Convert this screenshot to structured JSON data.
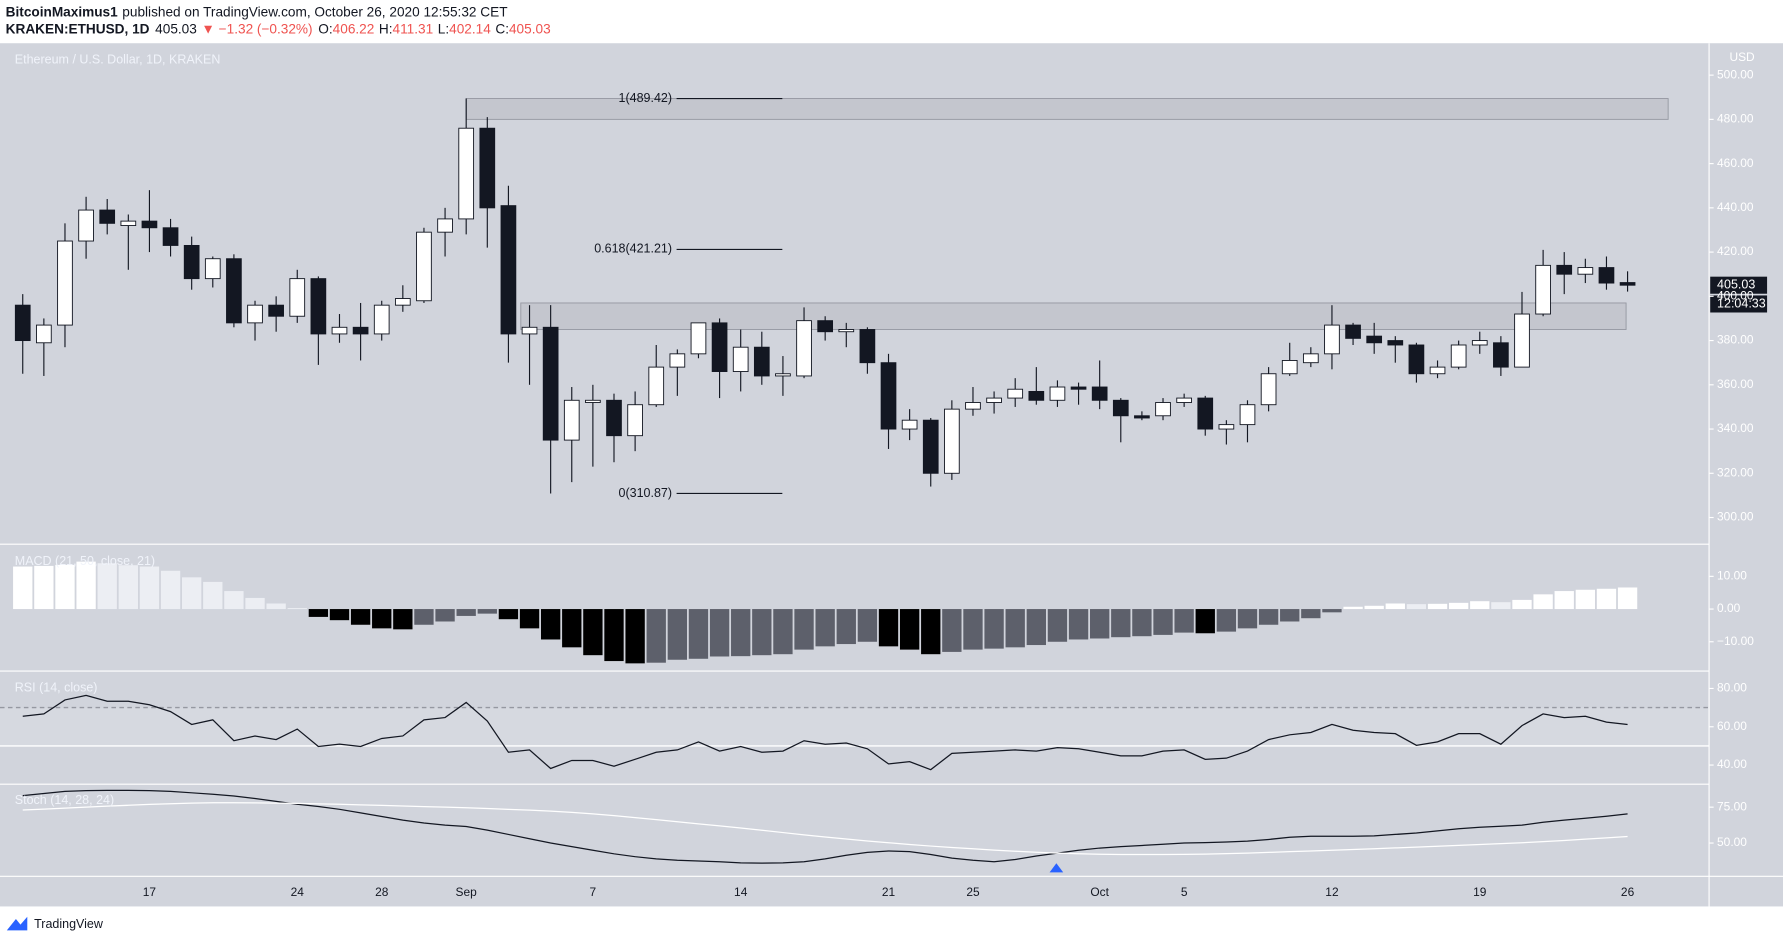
{
  "header": {
    "author": "BitcoinMaximus1",
    "published": "published on TradingView.com, October 26, 2020 12:55:32 CET",
    "symbol": "KRAKEN:ETHUSD, 1D",
    "change": "▼ −1.32 (−0.32%)",
    "ohlc_labels": [
      "O:",
      "H:",
      "L:",
      "C:"
    ]
  },
  "footer": {
    "brand": "TradingView"
  },
  "chart_data": [
    {
      "type": "candlestick",
      "title": "Ethereum / U.S. Dollar, 1D, KRAKEN",
      "y_axis_label": "USD",
      "countdown": "12:04:33",
      "up_color": "#ffffff",
      "down_color": "#131722",
      "outline_color": "#131722",
      "categories": [
        null,
        null,
        null,
        null,
        null,
        null,
        "17",
        null,
        null,
        null,
        null,
        null,
        null,
        "24",
        null,
        null,
        null,
        "28",
        null,
        null,
        null,
        "Sep",
        null,
        null,
        null,
        null,
        null,
        "7",
        null,
        null,
        null,
        null,
        null,
        null,
        "14",
        null,
        null,
        null,
        null,
        null,
        null,
        "21",
        null,
        null,
        null,
        "25",
        null,
        null,
        null,
        null,
        null,
        "Oct",
        null,
        null,
        null,
        "5",
        null,
        null,
        null,
        null,
        null,
        null,
        "12",
        null,
        null,
        null,
        null,
        null,
        null,
        "19",
        null,
        null,
        null,
        null,
        null,
        null,
        "26"
      ],
      "open": [
        396,
        379,
        387,
        425,
        439,
        432,
        434,
        431,
        423,
        408,
        417,
        388,
        396,
        391,
        408,
        383,
        386,
        383,
        396,
        398,
        429,
        435,
        476,
        441,
        383,
        386,
        335,
        352,
        353,
        337,
        351,
        368,
        374,
        388,
        366,
        377,
        364,
        364,
        389,
        384,
        385,
        370,
        340,
        344,
        320,
        349,
        352,
        354,
        357,
        353,
        359,
        359,
        353,
        346,
        346,
        352,
        354,
        340,
        342,
        351,
        365,
        370,
        374,
        387,
        382,
        380,
        378,
        365,
        368,
        378,
        379,
        368,
        392,
        414,
        410,
        413,
        406.22
      ],
      "high": [
        401,
        390,
        433,
        445,
        444,
        437,
        448,
        435,
        427,
        418,
        419,
        398,
        400,
        412,
        409,
        392,
        397,
        398,
        405,
        431,
        440,
        489.42,
        481,
        450,
        396,
        396,
        359,
        360,
        356,
        357,
        378,
        376,
        388,
        390,
        385,
        384,
        373,
        395,
        391,
        388,
        386,
        374,
        349,
        345,
        353,
        359,
        357,
        363,
        368,
        362,
        361,
        371,
        354,
        348,
        354,
        356,
        355,
        344,
        353,
        368,
        379,
        377,
        396,
        388,
        388,
        382,
        379,
        371,
        380,
        384,
        382,
        402,
        421,
        420,
        417,
        418,
        411.31
      ],
      "low": [
        365,
        364,
        377,
        417,
        428,
        412,
        420,
        418,
        403,
        404,
        386,
        380,
        384,
        388,
        369,
        379,
        371,
        380,
        393,
        397,
        418,
        428,
        422,
        370,
        360,
        310.87,
        316,
        323,
        325,
        330,
        350,
        355,
        372,
        354,
        357,
        360,
        355,
        363,
        380,
        377,
        365,
        331,
        335,
        314,
        317,
        346,
        347,
        350,
        351,
        350,
        351,
        349,
        334,
        344,
        344,
        350,
        337,
        333,
        334,
        348,
        364,
        368,
        367,
        378,
        374,
        370,
        361,
        363,
        367,
        374,
        364,
        368,
        391,
        401,
        406,
        403,
        402.14
      ],
      "close": [
        380,
        387,
        425,
        439,
        433,
        434,
        431,
        423,
        408,
        417,
        388,
        396,
        391,
        408,
        383,
        386,
        383,
        396,
        399,
        429,
        435,
        476,
        440,
        383,
        386,
        335,
        353,
        353,
        337,
        351,
        368,
        374,
        388,
        366,
        377,
        364,
        365,
        389,
        384,
        385,
        370,
        340,
        344,
        320,
        349,
        352,
        354,
        358,
        353,
        359,
        358,
        353,
        346,
        345,
        352,
        354,
        340,
        342,
        351,
        365,
        371,
        374,
        387,
        381,
        379,
        378,
        365,
        368,
        378,
        380,
        368,
        392,
        414,
        410,
        413,
        406,
        405.03
      ],
      "ylim": [
        288.7,
        513.4
      ],
      "yticks": [
        {
          "value": 300,
          "label": "300.00"
        },
        {
          "value": 320,
          "label": "320.00"
        },
        {
          "value": 340,
          "label": "340.00"
        },
        {
          "value": 360,
          "label": "360.00"
        },
        {
          "value": 380,
          "label": "380.00"
        },
        {
          "value": 400,
          "label": "400.00"
        },
        {
          "value": 420,
          "label": "420.00"
        },
        {
          "value": 440,
          "label": "440.00"
        },
        {
          "value": 460,
          "label": "460.00"
        },
        {
          "value": 480,
          "label": "480.00"
        },
        {
          "value": 500,
          "label": "500.00"
        }
      ],
      "fib_levels": [
        {
          "value": 489.42,
          "label": "1(489.42)"
        },
        {
          "value": 421.21,
          "label": "0.618(421.21)"
        },
        {
          "value": 310.87,
          "label": "0(310.87)"
        }
      ],
      "zones": [
        [
          480,
          489.42
        ],
        [
          385,
          397
        ]
      ],
      "zone_color": "#bfc2ca",
      "grid": false
    },
    {
      "type": "histogram",
      "title": "MACD (21, 50, close, 21)",
      "values": [
        13,
        13.2,
        13.5,
        14.5,
        14,
        13.4,
        13,
        11.7,
        9.7,
        8.3,
        5.5,
        3.4,
        1.7,
        0.3,
        -2.4,
        -3.4,
        -4.8,
        -5.9,
        -6.2,
        -4.8,
        -3.8,
        -2.1,
        -1.4,
        -3.1,
        -5.9,
        -9.3,
        -11.7,
        -14.1,
        -15.9,
        -16.6,
        -16.4,
        -15.5,
        -15.2,
        -14.5,
        -14.4,
        -14.1,
        -13.8,
        -12.4,
        -11.4,
        -10.7,
        -10,
        -11.4,
        -12.4,
        -13.8,
        -13.1,
        -12.4,
        -12.1,
        -11.7,
        -11,
        -10,
        -9.3,
        -9,
        -8.6,
        -8.3,
        -7.9,
        -7.2,
        -7.4,
        -6.9,
        -5.9,
        -4.8,
        -3.8,
        -2.8,
        -1,
        0.7,
        1,
        1.7,
        1.5,
        1.6,
        1.9,
        2.4,
        2.1,
        2.8,
        4.5,
        5.5,
        5.9,
        6.2,
        6.6
      ],
      "colors": {
        "pos_up": "#ffffff",
        "pos_down": "#eceef3",
        "neg_down": "#000000",
        "neg_up": "#5d606b"
      },
      "ylim": [
        -18.6,
        19.3
      ],
      "yticks": [
        {
          "value": 10,
          "label": "10.00"
        },
        {
          "value": 0,
          "label": "0.00"
        },
        {
          "value": -10,
          "label": "−10.00"
        }
      ]
    },
    {
      "type": "line",
      "title": "RSI (14, close)",
      "series": [
        {
          "color": "#131722",
          "values": [
            65.5,
            66.7,
            74,
            76.4,
            73.3,
            73.3,
            71.5,
            67.9,
            61.2,
            63.6,
            52.7,
            55.2,
            53.3,
            58.8,
            49.7,
            50.9,
            49.7,
            53.9,
            55.2,
            63.6,
            64.8,
            72.7,
            63,
            46.7,
            47.9,
            38.2,
            42.4,
            42.4,
            39.4,
            43,
            46.7,
            47.9,
            52.1,
            47.3,
            49.7,
            46.7,
            47.3,
            52.7,
            50.9,
            51.5,
            48.5,
            40.6,
            41.8,
            37.6,
            46.1,
            46.7,
            47.3,
            47.9,
            47.3,
            49.1,
            48.5,
            46.7,
            44.8,
            44.8,
            47.3,
            47.9,
            43,
            43.6,
            47.3,
            53.3,
            55.8,
            57,
            61.2,
            58.2,
            57,
            56.4,
            50.3,
            52.1,
            56.4,
            56.4,
            50.9,
            60.6,
            66.7,
            64.8,
            65.5,
            62.4,
            61.2
          ]
        }
      ],
      "bands": [
        {
          "value": 70,
          "style": "dashed",
          "color": "#9598a1"
        },
        {
          "value": 50,
          "style": "solid",
          "color": "#ffffff"
        }
      ],
      "ylim": [
        30.9,
        88.5
      ],
      "yticks": [
        {
          "value": 80,
          "label": "80.00"
        },
        {
          "value": 60,
          "label": "60.00"
        },
        {
          "value": 40,
          "label": "40.00"
        }
      ]
    },
    {
      "type": "line",
      "title": "Stoch (14, 28, 24)",
      "series": [
        {
          "color": "#131722",
          "values": [
            83,
            84.5,
            86,
            86.5,
            86.7,
            86.7,
            86.5,
            86,
            85,
            84,
            82.8,
            81,
            79,
            77,
            75.5,
            73.5,
            71,
            68.5,
            66,
            64,
            62.5,
            61.5,
            59,
            56,
            53,
            50,
            47.5,
            45,
            42.5,
            40.5,
            39,
            38,
            37.5,
            37,
            36.2,
            36,
            36.2,
            37,
            39,
            41.5,
            43.5,
            44.5,
            44,
            42,
            39.5,
            38,
            37,
            38.5,
            41,
            43,
            45,
            46.5,
            47.5,
            48.3,
            49.2,
            50,
            50.3,
            50.7,
            51.3,
            52.5,
            54,
            54.7,
            54.7,
            54.7,
            55,
            56,
            57,
            58.5,
            60,
            61,
            61.7,
            62.5,
            64.5,
            66,
            67.3,
            68.7,
            70.3
          ]
        },
        {
          "color": "#ffffff",
          "values": [
            73,
            73.6,
            74.3,
            75,
            75.7,
            76.3,
            76.9,
            77.4,
            77.8,
            78.1,
            78.1,
            78,
            77.8,
            77.6,
            77.3,
            77,
            76.6,
            76.2,
            75.8,
            75.4,
            75,
            74.6,
            74.1,
            73.5,
            72.9,
            72.2,
            71.4,
            70.3,
            69.1,
            67.7,
            66.3,
            64.8,
            63.4,
            62,
            60.5,
            58.9,
            57.3,
            55.7,
            54.2,
            52.8,
            51.4,
            50.2,
            49,
            47.9,
            46.9,
            46,
            45.1,
            44.3,
            43.6,
            43,
            42.5,
            42.2,
            42,
            42,
            42,
            42.1,
            42.3,
            42.6,
            43,
            43.5,
            44,
            44.5,
            45,
            45.5,
            46,
            46.6,
            47.2,
            47.8,
            48.4,
            49,
            49.6,
            50.2,
            51,
            51.8,
            52.7,
            53.6,
            54.6
          ]
        }
      ],
      "ylim": [
        28,
        90.6
      ],
      "yticks": [
        {
          "value": 75,
          "label": "75.00"
        },
        {
          "value": 50,
          "label": "50.00"
        }
      ]
    }
  ]
}
